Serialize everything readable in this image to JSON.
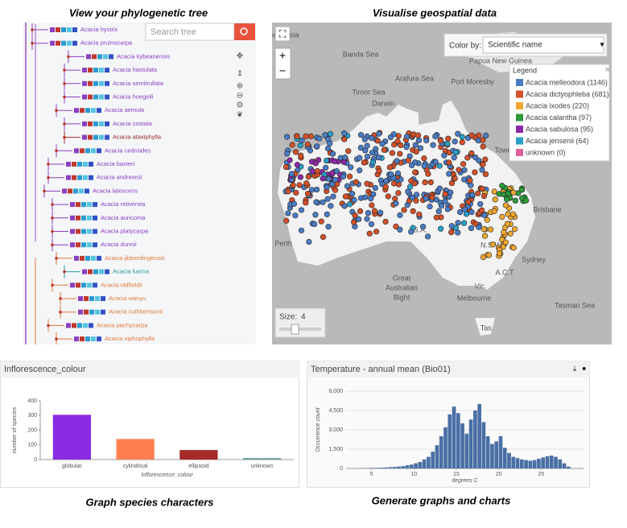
{
  "captions": {
    "tree": "View your phylogenetic tree",
    "map": "Visualise geospatial data",
    "bar": "Graph species characters",
    "histogram": "Generate graphs and charts"
  },
  "tree": {
    "search_placeholder": "Search tree",
    "species": [
      {
        "name": "Acacia hystrix",
        "color": "#8b3fc0"
      },
      {
        "name": "Acacia pruinocarpa",
        "color": "#8b3fc0"
      },
      {
        "name": "Acacia kybeanensis",
        "color": "#8b3fc0"
      },
      {
        "name": "Acacia hastulata",
        "color": "#8b3fc0"
      },
      {
        "name": "Acacia semitrullata",
        "color": "#8b3fc0"
      },
      {
        "name": "Acacia huegelii",
        "color": "#8b3fc0"
      },
      {
        "name": "Acacia aemula",
        "color": "#8b3fc0"
      },
      {
        "name": "Acacia costata",
        "color": "#8b3fc0"
      },
      {
        "name": "Acacia ataxiphylla",
        "color": "#9b2a2a"
      },
      {
        "name": "Acacia cedroides",
        "color": "#8b3fc0"
      },
      {
        "name": "Acacia baxteri",
        "color": "#8b3fc0"
      },
      {
        "name": "Acacia andrewsii",
        "color": "#8b3fc0"
      },
      {
        "name": "Acacia latescens",
        "color": "#8b3fc0"
      },
      {
        "name": "Acacia retivenea",
        "color": "#8b3fc0"
      },
      {
        "name": "Acacia auricoma",
        "color": "#8b3fc0"
      },
      {
        "name": "Acacia platycarpa",
        "color": "#8b3fc0"
      },
      {
        "name": "Acacia dunnii",
        "color": "#8b3fc0"
      },
      {
        "name": "Acacia jibberdingensis",
        "color": "#e07b39"
      },
      {
        "name": "Acacia karina",
        "color": "#2a9a9a"
      },
      {
        "name": "Acacia oldfieldii",
        "color": "#e07b39"
      },
      {
        "name": "Acacia wanyu",
        "color": "#e07b39"
      },
      {
        "name": "Acacia cuthbertsonii",
        "color": "#e07b39"
      },
      {
        "name": "Acacia pachycarpa",
        "color": "#e07b39"
      },
      {
        "name": "Acacia xiphophylla",
        "color": "#e07b39"
      }
    ]
  },
  "map": {
    "color_by_label": "Color by:",
    "color_by_value": "Scientific name",
    "legend_title": "Legend",
    "legend": [
      {
        "label": "Acacia melleodora (1146)",
        "color": "#4a7cc4"
      },
      {
        "label": "Acacia dictyophleba (681)",
        "color": "#d2512a"
      },
      {
        "label": "Acacia ixodes (220)",
        "color": "#f0a830"
      },
      {
        "label": "Acacia calantha (97)",
        "color": "#2e9a3a"
      },
      {
        "label": "Acacia sabulosa (95)",
        "color": "#8e2aa8"
      },
      {
        "label": "Acacia jensenii (64)",
        "color": "#2aa0c8"
      },
      {
        "label": "unknown (0)",
        "color": "#e0609a"
      }
    ],
    "places": [
      {
        "text": "Indonesia",
        "x": 352,
        "y": 44
      },
      {
        "text": "Banda Sea",
        "x": 448,
        "y": 68
      },
      {
        "text": "Papua New Guinea",
        "x": 622,
        "y": 76
      },
      {
        "text": "Arafura Sea",
        "x": 515,
        "y": 98
      },
      {
        "text": "Port Moresby",
        "x": 587,
        "y": 102
      },
      {
        "text": "Timor Sea",
        "x": 458,
        "y": 115
      },
      {
        "text": "Darwin",
        "x": 476,
        "y": 129
      },
      {
        "text": "Town",
        "x": 625,
        "y": 187
      },
      {
        "text": "Brisbane",
        "x": 680,
        "y": 261
      },
      {
        "text": "S.A.",
        "x": 522,
        "y": 286
      },
      {
        "text": "Perth",
        "x": 352,
        "y": 303
      },
      {
        "text": "N.S.W.",
        "x": 611,
        "y": 305
      },
      {
        "text": "Sydney",
        "x": 663,
        "y": 323
      },
      {
        "text": "Great",
        "x": 499,
        "y": 346
      },
      {
        "text": "Australian",
        "x": 499,
        "y": 358
      },
      {
        "text": "Bight",
        "x": 499,
        "y": 370
      },
      {
        "text": "A.C.T",
        "x": 627,
        "y": 339
      },
      {
        "text": "Vic.",
        "x": 597,
        "y": 356
      },
      {
        "text": "Melbourne",
        "x": 589,
        "y": 371
      },
      {
        "text": "Tasman Sea",
        "x": 714,
        "y": 380
      },
      {
        "text": "Tas.",
        "x": 605,
        "y": 408
      }
    ],
    "size_label": "Size:",
    "size_value": 4
  },
  "chart_data": [
    {
      "type": "bar",
      "title": "Inflorescence_colour",
      "categories": [
        "globular",
        "cylindrical",
        "ellipsoid",
        "unknown"
      ],
      "values": [
        305,
        140,
        65,
        10
      ],
      "colors": [
        "#8a2be2",
        "#ff7f50",
        "#a52a2a",
        "#5f9ea0"
      ],
      "ylim": [
        0,
        400
      ],
      "yticks": [
        0,
        100,
        200,
        300,
        400
      ],
      "xlabel": "Inflorescence_colour",
      "ylabel": "number of species"
    },
    {
      "type": "histogram",
      "title": "Temperature - annual mean (Bio01)",
      "color": "#4a6fa5",
      "bins": [
        4,
        4.5,
        5,
        5.5,
        6,
        6.5,
        7,
        7.5,
        8,
        8.5,
        9,
        9.5,
        10,
        10.5,
        11,
        11.5,
        12,
        12.5,
        13,
        13.5,
        14,
        14.5,
        15,
        15.5,
        16,
        16.5,
        17,
        17.5,
        18,
        18.5,
        19,
        19.5,
        20,
        20.5,
        21,
        21.5,
        22,
        22.5,
        23,
        23.5,
        24,
        24.5,
        25,
        25.5,
        26,
        26.5,
        27,
        27.5,
        28,
        28.5
      ],
      "values": [
        20,
        30,
        40,
        50,
        60,
        80,
        100,
        120,
        150,
        180,
        250,
        300,
        400,
        500,
        700,
        900,
        1300,
        1800,
        2500,
        3200,
        4200,
        4800,
        4300,
        3500,
        2700,
        3800,
        4500,
        5000,
        3600,
        2500,
        1900,
        2100,
        2500,
        1600,
        1200,
        900,
        800,
        700,
        650,
        600,
        650,
        750,
        850,
        950,
        1000,
        900,
        700,
        400,
        150
      ],
      "xlim": [
        2,
        30
      ],
      "xticks": [
        5,
        10,
        15,
        20,
        25
      ],
      "ylim": [
        0,
        6000
      ],
      "yticks": [
        0,
        {
          "value": 1500,
          "label": "1,500"
        },
        {
          "value": 3000,
          "label": "3,000"
        },
        {
          "value": 4500,
          "label": "4,500"
        },
        {
          "value": 6000,
          "label": "6,000"
        }
      ],
      "xlabel": "degrees C",
      "ylabel": "Occurrence count"
    }
  ]
}
